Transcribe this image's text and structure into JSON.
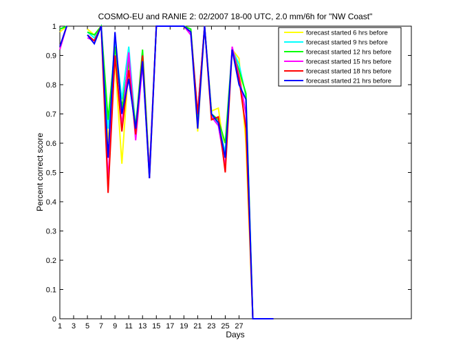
{
  "chart_data": {
    "type": "line",
    "title": "COSMO-EU and RANIE 2: 02/2007 18-00 UTC, 2.0 mm/6h for \"NW Coast\"",
    "x_label": "Days",
    "y_label": "Percent correct score",
    "x": [
      1,
      2,
      3,
      4,
      5,
      6,
      7,
      8,
      9,
      10,
      11,
      12,
      13,
      14,
      15,
      16,
      17,
      18,
      19,
      20,
      21,
      22,
      23,
      24,
      25,
      26,
      27,
      28,
      29,
      30,
      31,
      32
    ],
    "xlim": [
      1,
      52
    ],
    "xticks": [
      1,
      3,
      5,
      7,
      9,
      11,
      13,
      15,
      17,
      19,
      21,
      23,
      25,
      27
    ],
    "ylim": [
      0,
      1
    ],
    "yticks": [
      0,
      0.1,
      0.2,
      0.3,
      0.4,
      0.5,
      0.6,
      0.7,
      0.8,
      0.9,
      1
    ],
    "legend_position": "upper right",
    "series": [
      {
        "name": "forecast started 6 hrs before",
        "color": "#ffff00",
        "values": [
          0.98,
          1,
          null,
          null,
          0.99,
          0.97,
          1,
          0.6,
          0.88,
          0.53,
          0.87,
          0.66,
          0.9,
          0.5,
          1,
          1,
          1,
          1,
          1,
          0.99,
          0.64,
          1,
          0.71,
          0.72,
          0.55,
          0.92,
          0.89,
          0.6,
          0,
          0,
          0,
          0
        ]
      },
      {
        "name": "forecast started 9 hrs before",
        "color": "#00ffff",
        "values": [
          0.99,
          1,
          null,
          null,
          0.98,
          0.96,
          1,
          0.65,
          0.95,
          0.75,
          0.93,
          0.65,
          0.9,
          0.5,
          1,
          1,
          1,
          1,
          1,
          0.99,
          0.7,
          1,
          0.7,
          0.66,
          0.57,
          0.92,
          0.87,
          0.76,
          0,
          0,
          0,
          0
        ]
      },
      {
        "name": "forecast started 12 hrs before",
        "color": "#00ff00",
        "values": [
          0.99,
          1,
          null,
          null,
          0.98,
          0.97,
          1,
          0.68,
          0.93,
          0.72,
          0.88,
          0.65,
          0.92,
          0.5,
          1,
          1,
          1,
          1,
          1,
          0.99,
          0.68,
          1,
          0.7,
          0.68,
          0.6,
          0.92,
          0.85,
          0.77,
          0,
          0,
          0,
          0
        ]
      },
      {
        "name": "forecast started 15 hrs before",
        "color": "#ff00ff",
        "values": [
          0.92,
          1,
          null,
          null,
          0.96,
          0.95,
          1,
          0.47,
          0.9,
          0.66,
          0.91,
          0.61,
          0.87,
          0.5,
          1,
          1,
          1,
          1,
          1,
          0.97,
          0.7,
          1,
          0.69,
          0.66,
          0.52,
          0.93,
          0.83,
          0.7,
          0,
          0,
          0,
          0
        ]
      },
      {
        "name": "forecast started 18 hrs before",
        "color": "#ff0000",
        "values": [
          0.93,
          1,
          null,
          null,
          0.97,
          0.95,
          1,
          0.43,
          0.9,
          0.64,
          0.85,
          0.63,
          0.9,
          0.48,
          1,
          1,
          1,
          1,
          1,
          0.98,
          0.7,
          1,
          0.68,
          0.69,
          0.5,
          0.92,
          0.82,
          0.65,
          0,
          0,
          0,
          0
        ]
      },
      {
        "name": "forecast started 21 hrs before",
        "color": "#0000ff",
        "values": [
          0.93,
          1,
          null,
          null,
          0.97,
          0.94,
          1,
          0.55,
          0.98,
          0.7,
          0.82,
          0.65,
          0.88,
          0.48,
          1,
          1,
          1,
          1,
          1,
          0.98,
          0.65,
          1,
          0.7,
          0.67,
          0.55,
          0.92,
          0.8,
          0.75,
          0,
          0,
          0,
          0
        ]
      }
    ]
  }
}
